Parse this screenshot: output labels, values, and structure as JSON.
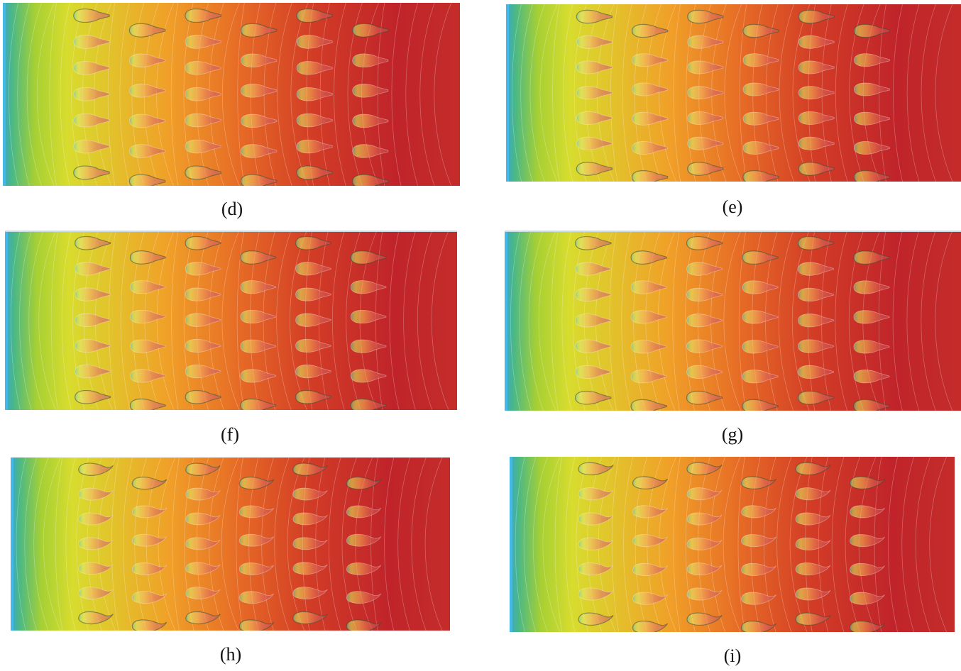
{
  "figure": {
    "panels": [
      {
        "id": "d",
        "label": "(d)",
        "foil_shape": "tear",
        "top_edge": false
      },
      {
        "id": "e",
        "label": "(e)",
        "foil_shape": "tear",
        "top_edge": false
      },
      {
        "id": "f",
        "label": "(f)",
        "foil_shape": "tear-tailed",
        "top_edge": true
      },
      {
        "id": "g",
        "label": "(g)",
        "foil_shape": "tear-tailed",
        "top_edge": true
      },
      {
        "id": "h",
        "label": "(h)",
        "foil_shape": "curved",
        "top_edge": false
      },
      {
        "id": "i",
        "label": "(i)",
        "foil_shape": "curved",
        "top_edge": false
      }
    ],
    "array_columns": 6,
    "array_rows_even": 6,
    "array_rows_odd": 7,
    "colormap": [
      "#3aa8c8",
      "#4ab886",
      "#a6d034",
      "#d8dc2e",
      "#f0a028",
      "#e66a26",
      "#d23c26",
      "#c0242a",
      "#c42c2a"
    ],
    "contour_color": "#ffffff",
    "left_wall_color": "#44b8e8"
  }
}
